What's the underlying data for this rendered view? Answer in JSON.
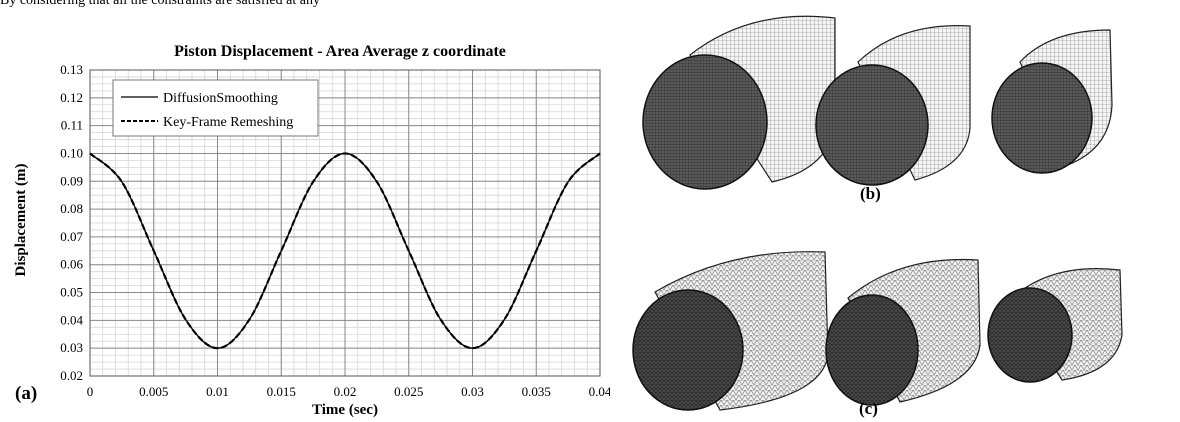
{
  "header_text": "By considering that all the constraints are satisfied at any",
  "figure": {
    "panel_a_label": "(a)",
    "panel_b_label": "(b)",
    "panel_c_label": "(c)"
  },
  "chart_data": {
    "type": "line",
    "title": "Piston Displacement  - Area Average z coordinate",
    "xlabel": "Time (sec)",
    "ylabel": "Displacement (m)",
    "xlim": [
      0,
      0.04
    ],
    "ylim": [
      0.02,
      0.13
    ],
    "xticks": [
      "0",
      "0.005",
      "0.01",
      "0.015",
      "0.02",
      "0.025",
      "0.03",
      "0.035",
      "0.04"
    ],
    "yticks": [
      "0.02",
      "0.03",
      "0.04",
      "0.05",
      "0.06",
      "0.07",
      "0.08",
      "0.09",
      "0.10",
      "0.11",
      "0.12",
      "0.13"
    ],
    "grid": true,
    "legend_position": "top-left",
    "x": [
      0,
      0.0025,
      0.005,
      0.0075,
      0.01,
      0.0125,
      0.015,
      0.0175,
      0.02,
      0.0225,
      0.025,
      0.0275,
      0.03,
      0.0325,
      0.035,
      0.0375,
      0.04
    ],
    "series": [
      {
        "name": "DiffusionSmoothing",
        "style": "solid",
        "color": "#000000",
        "values": [
          0.1,
          0.0898,
          0.065,
          0.0403,
          0.03,
          0.0403,
          0.065,
          0.0898,
          0.1,
          0.0898,
          0.065,
          0.0403,
          0.03,
          0.0403,
          0.065,
          0.0898,
          0.1
        ]
      },
      {
        "name": "Key-Frame Remeshing",
        "style": "dashed",
        "color": "#000000",
        "values": [
          0.1,
          0.0898,
          0.065,
          0.0403,
          0.03,
          0.0403,
          0.065,
          0.0898,
          0.1,
          0.0898,
          0.065,
          0.0403,
          0.03,
          0.0403,
          0.065,
          0.0898,
          0.1
        ]
      }
    ]
  }
}
